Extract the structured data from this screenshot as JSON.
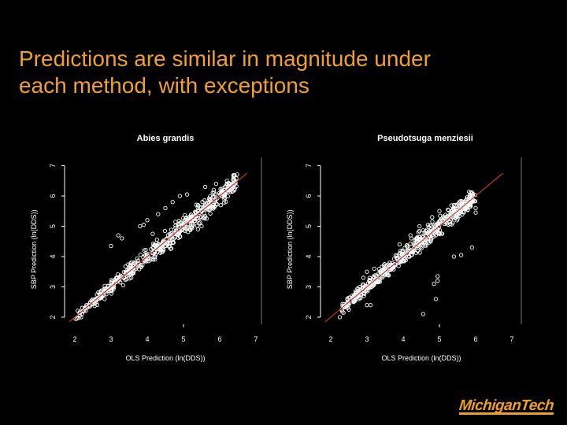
{
  "slide": {
    "title_line1": "Predictions are similar in magnitude under",
    "title_line2": "each method, with exceptions"
  },
  "logo": {
    "text": "MichiganTech",
    "color": "#f0a020"
  },
  "colors": {
    "title": "#f0a030",
    "point": "#ffffff",
    "fit_line": "#c0392b",
    "axis": "#ffffff"
  },
  "chart_data": [
    {
      "type": "scatter",
      "title": "Abies grandis",
      "xlabel": "OLS Prediction (ln(DDS))",
      "ylabel": "SBP Prediction (ln(DDS))",
      "xlim": [
        1.7,
        7.0
      ],
      "ylim": [
        1.9,
        7.3
      ],
      "xticks": [
        2,
        3,
        4,
        5,
        6,
        7
      ],
      "yticks": [
        2,
        3,
        4,
        5,
        6,
        7
      ],
      "reference_line": "1:1",
      "main_cloud": {
        "x_range": [
          2.0,
          6.5
        ],
        "spread": 0.35
      },
      "outliers": [
        {
          "x": 3.0,
          "y": 4.35
        },
        {
          "x": 3.3,
          "y": 4.6
        },
        {
          "x": 3.2,
          "y": 4.7
        },
        {
          "x": 3.9,
          "y": 5.05
        },
        {
          "x": 3.8,
          "y": 5.0
        },
        {
          "x": 4.0,
          "y": 5.2
        },
        {
          "x": 4.3,
          "y": 5.4
        },
        {
          "x": 4.5,
          "y": 5.6
        },
        {
          "x": 4.7,
          "y": 5.8
        },
        {
          "x": 4.9,
          "y": 6.0
        },
        {
          "x": 5.1,
          "y": 6.05
        },
        {
          "x": 5.2,
          "y": 4.95
        },
        {
          "x": 5.5,
          "y": 5.0
        },
        {
          "x": 5.4,
          "y": 4.9
        },
        {
          "x": 4.9,
          "y": 4.65
        },
        {
          "x": 4.7,
          "y": 4.45
        },
        {
          "x": 5.6,
          "y": 6.3
        },
        {
          "x": 5.9,
          "y": 6.4
        },
        {
          "x": 6.2,
          "y": 6.5
        },
        {
          "x": 6.4,
          "y": 6.55
        },
        {
          "x": 4.15,
          "y": 4.75
        }
      ]
    },
    {
      "type": "scatter",
      "title": "Pseudotsuga menziesii",
      "xlabel": "OLS Prediction (ln(DDS))",
      "ylabel": "SBP Prediction (ln(DDS))",
      "xlim": [
        1.7,
        7.0
      ],
      "ylim": [
        1.9,
        7.3
      ],
      "xticks": [
        2,
        3,
        4,
        5,
        6,
        7
      ],
      "yticks": [
        2,
        3,
        4,
        5,
        6,
        7
      ],
      "reference_line": "1:1",
      "main_cloud": {
        "x_range": [
          2.3,
          6.0
        ],
        "spread": 0.35
      },
      "outliers": [
        {
          "x": 2.3,
          "y": 2.25
        },
        {
          "x": 2.25,
          "y": 2.0
        },
        {
          "x": 2.35,
          "y": 2.15
        },
        {
          "x": 2.5,
          "y": 2.25
        },
        {
          "x": 2.8,
          "y": 3.0
        },
        {
          "x": 2.9,
          "y": 3.3
        },
        {
          "x": 3.0,
          "y": 3.5
        },
        {
          "x": 3.2,
          "y": 3.6
        },
        {
          "x": 5.9,
          "y": 4.3
        },
        {
          "x": 5.6,
          "y": 4.05
        },
        {
          "x": 5.4,
          "y": 4.0
        },
        {
          "x": 4.95,
          "y": 3.35
        },
        {
          "x": 4.85,
          "y": 3.1
        },
        {
          "x": 4.95,
          "y": 3.2
        },
        {
          "x": 4.9,
          "y": 2.6
        },
        {
          "x": 4.55,
          "y": 2.1
        },
        {
          "x": 3.9,
          "y": 4.4
        },
        {
          "x": 4.2,
          "y": 4.7
        },
        {
          "x": 4.45,
          "y": 5.0
        },
        {
          "x": 4.8,
          "y": 5.3
        },
        {
          "x": 5.0,
          "y": 5.5
        },
        {
          "x": 5.4,
          "y": 5.7
        },
        {
          "x": 5.9,
          "y": 6.0
        },
        {
          "x": 6.0,
          "y": 5.6
        },
        {
          "x": 6.0,
          "y": 5.45
        },
        {
          "x": 3.1,
          "y": 2.4
        },
        {
          "x": 3.0,
          "y": 2.4
        }
      ]
    }
  ]
}
